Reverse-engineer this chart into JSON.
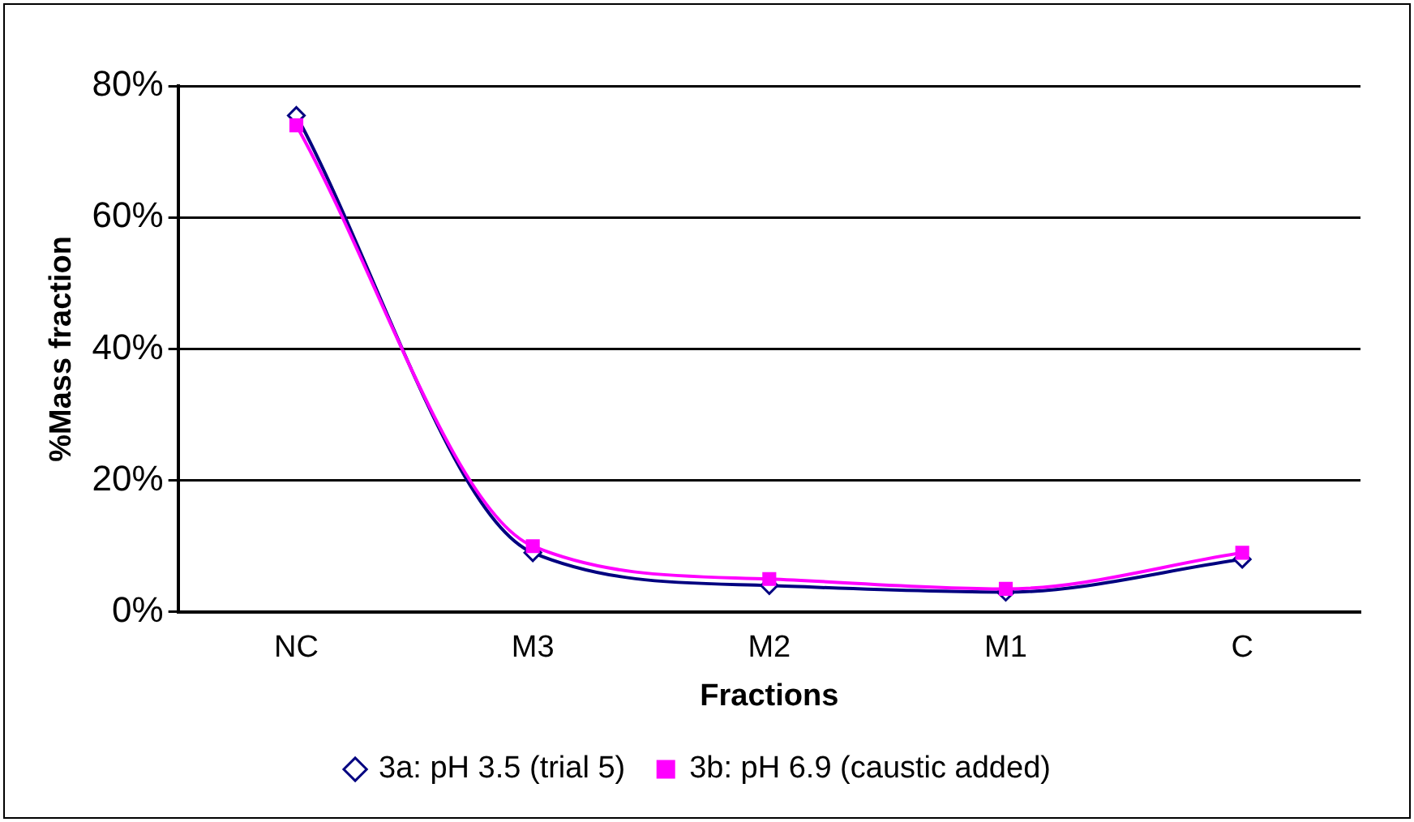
{
  "chart_data": {
    "type": "line",
    "xlabel": "Fractions",
    "ylabel": "%Mass fraction",
    "categories": [
      "NC",
      "M3",
      "M2",
      "M1",
      "C"
    ],
    "series": [
      {
        "name": "3a: pH 3.5 (trial 5)",
        "color": "#000080",
        "values": [
          75.5,
          9,
          4,
          3,
          8
        ],
        "marker": "diamond"
      },
      {
        "name": "3b: pH 6.9 (caustic added)",
        "color": "#ff00ff",
        "values": [
          74,
          10,
          5,
          3.5,
          9
        ],
        "marker": "square"
      }
    ],
    "ylim": [
      0,
      80
    ],
    "yticks": [
      {
        "value": 0,
        "label": "0%"
      },
      {
        "value": 20,
        "label": "20%"
      },
      {
        "value": 40,
        "label": "40%"
      },
      {
        "value": 60,
        "label": "60%"
      },
      {
        "value": 80,
        "label": "80%"
      }
    ],
    "grid": "y",
    "legend": "bottom",
    "line_style": "solid"
  }
}
